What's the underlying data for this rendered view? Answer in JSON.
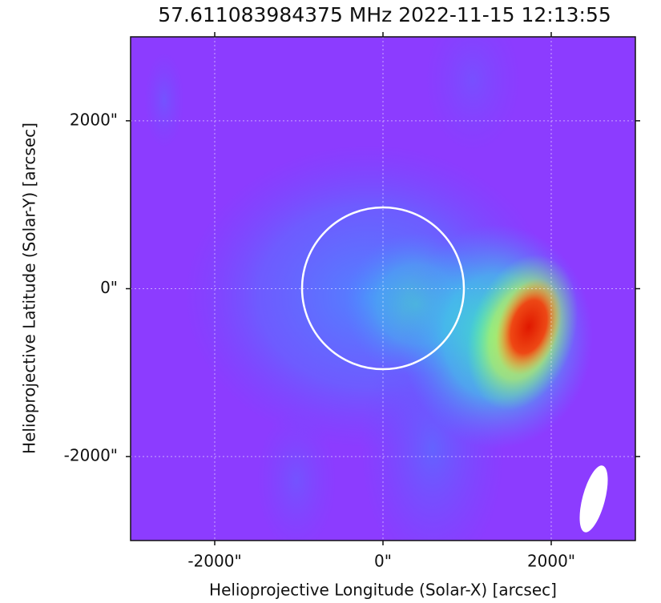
{
  "chart_data": {
    "type": "image",
    "title": "57.611083984375 MHz 2022-11-15 12:13:55",
    "xlabel": "Helioprojective Longitude (Solar-X) [arcsec]",
    "ylabel": "Helioprojective Latitude (Solar-Y) [arcsec]",
    "xlim": [
      -3000,
      3000
    ],
    "ylim": [
      -3000,
      3000
    ],
    "xticks": [
      {
        "value": -2000,
        "label": "-2000\""
      },
      {
        "value": 0,
        "label": "0\""
      },
      {
        "value": 2000,
        "label": "2000\""
      }
    ],
    "yticks": [
      {
        "value": -2000,
        "label": "-2000\""
      },
      {
        "value": 0,
        "label": "0\""
      },
      {
        "value": 2000,
        "label": "2000\""
      }
    ],
    "grid": true
  }
}
